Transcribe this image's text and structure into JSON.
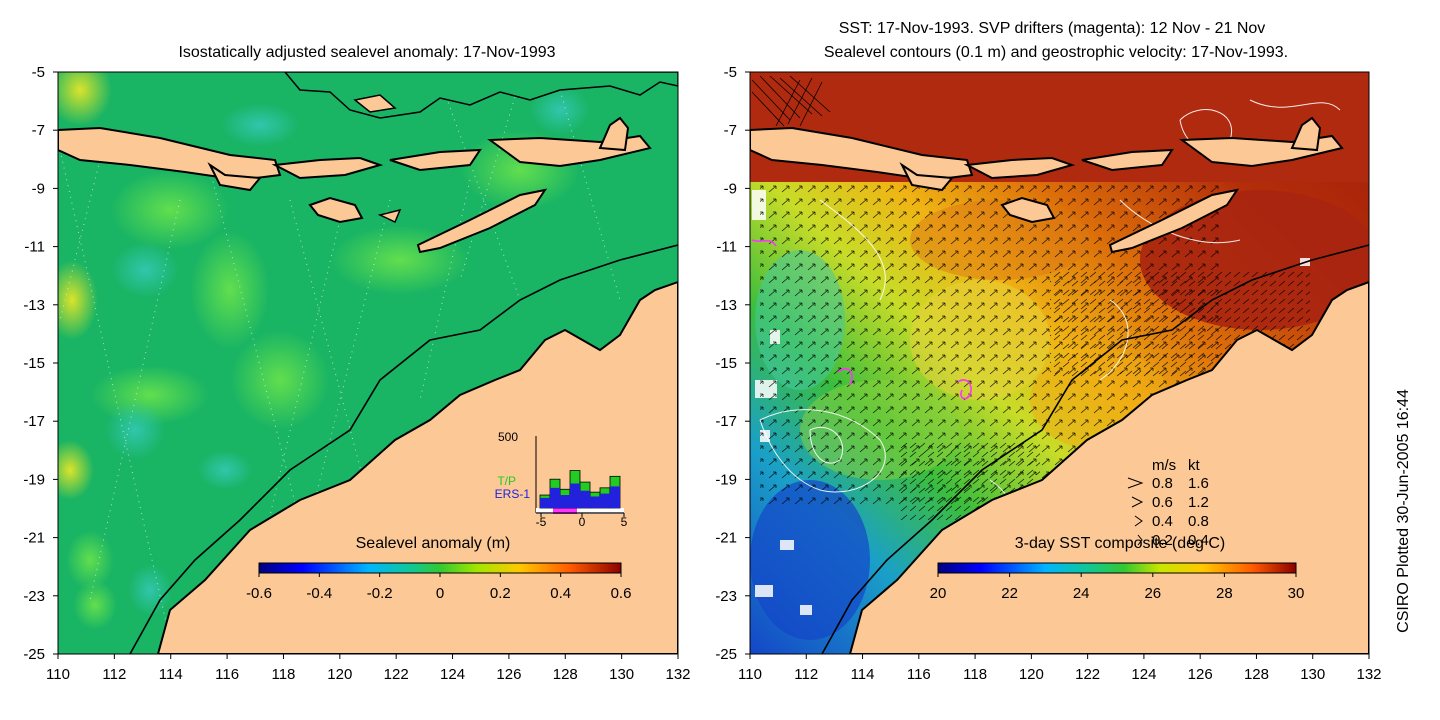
{
  "left_panel": {
    "title": "Isostatically adjusted sealevel anomaly: 17-Nov-1993",
    "colorbar_label": "Sealevel anomaly (m)",
    "colorbar_ticks": [
      "-0.6",
      "-0.4",
      "-0.2",
      "0",
      "0.2",
      "0.4",
      "0.6"
    ],
    "histogram": {
      "y_max_label": "500",
      "x_ticks": [
        "-5",
        "0",
        "5"
      ],
      "legend": [
        {
          "label": "T/P",
          "color": "#22cc22"
        },
        {
          "label": "ERS-1",
          "color": "#2222dd"
        }
      ],
      "tp_counts": [
        90,
        200,
        130,
        260,
        180,
        110,
        140,
        220
      ],
      "ers_counts": [
        70,
        140,
        90,
        170,
        120,
        80,
        100,
        150
      ]
    }
  },
  "right_panel": {
    "title_line1": "SST: 17-Nov-1993. SVP drifters (magenta): 12 Nov - 21 Nov",
    "title_line2": "Sealevel contours (0.1 m) and geostrophic velocity: 17-Nov-1993.",
    "colorbar_label": "3-day SST composite (deg C)",
    "colorbar_ticks": [
      "20",
      "22",
      "24",
      "26",
      "28",
      "30"
    ],
    "velocity_key": {
      "header_ms": "m/s",
      "header_kt": "kt",
      "rows": [
        {
          "ms": "0.8",
          "kt": "1.6"
        },
        {
          "ms": "0.6",
          "kt": "1.2"
        },
        {
          "ms": "0.4",
          "kt": "0.8"
        },
        {
          "ms": "0.2",
          "kt": "0.4"
        }
      ]
    }
  },
  "axes": {
    "lon_ticks": [
      "110",
      "112",
      "114",
      "116",
      "118",
      "120",
      "122",
      "124",
      "126",
      "128",
      "130",
      "132"
    ],
    "lat_ticks": [
      "-5",
      "-7",
      "-9",
      "-11",
      "-13",
      "-15",
      "-17",
      "-19",
      "-21",
      "-23",
      "-25"
    ],
    "lon_range": [
      110,
      132
    ],
    "lat_range": [
      -25,
      -5
    ]
  },
  "credit": "CSIRO Plotted 30-Jun-2005 16:44",
  "colors": {
    "land": "#fcc896",
    "ocean_sla": "#19b464",
    "sst_warm": "#b02a10",
    "sst_cool": "#1450c8"
  }
}
